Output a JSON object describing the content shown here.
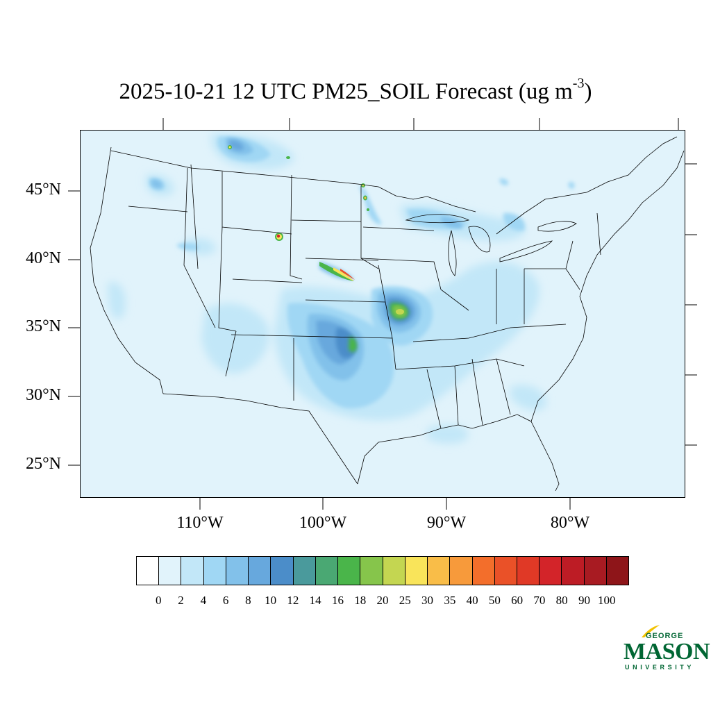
{
  "title": {
    "main": "2025-10-21 12 UTC PM25_SOIL Forecast (ug m",
    "superscript": "-3",
    "closing": ")"
  },
  "latitude_labels": [
    "45°N",
    "40°N",
    "35°N",
    "30°N",
    "25°N"
  ],
  "longitude_labels": [
    "110°W",
    "100°W",
    "90°W",
    "80°W"
  ],
  "colorbar": {
    "ticks": [
      "0",
      "2",
      "4",
      "6",
      "8",
      "10",
      "12",
      "14",
      "16",
      "18",
      "20",
      "25",
      "30",
      "35",
      "40",
      "50",
      "60",
      "70",
      "80",
      "90",
      "100"
    ],
    "colors": [
      "#ffffff",
      "#e1f3fb",
      "#c2e7f8",
      "#a0d7f4",
      "#82c1ea",
      "#67a8dd",
      "#4b8dc9",
      "#4a9a9c",
      "#4aa873",
      "#4ab54a",
      "#86c54b",
      "#c4d651",
      "#f9e45a",
      "#f9bd48",
      "#f79a3b",
      "#f36e2b",
      "#ea5128",
      "#e03926",
      "#d32429",
      "#bd1c25",
      "#a81b22",
      "#8e1519"
    ]
  },
  "map": {
    "background_color": "#e1f3fb",
    "line_color": "#000000"
  },
  "logo": {
    "line1": "GEORGE",
    "line2": "MASON",
    "line3": "UNIVERSITY"
  }
}
